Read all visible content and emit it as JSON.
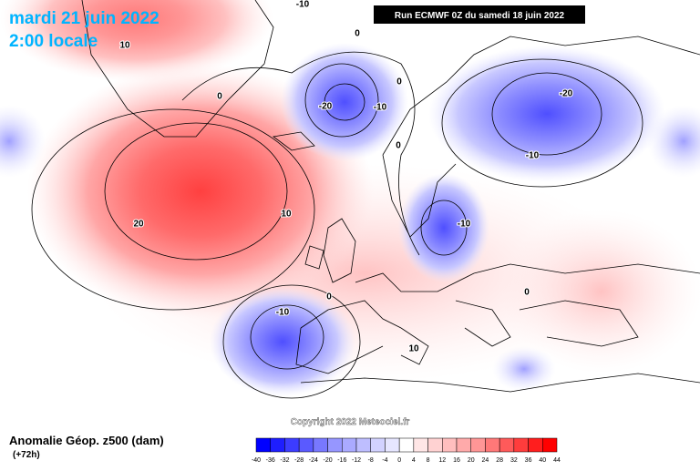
{
  "header": {
    "date": "mardi 21 juin 2022",
    "time": "2:00 locale",
    "run": "Run ECMWF 0Z du samedi 18 juin 2022"
  },
  "copyright": "Copyright 2022 Meteociel.fr",
  "legend": {
    "title": "Anomalie Géop. z500 (dam)",
    "subtitle": "(+72h)",
    "ticks": [
      -40,
      -36,
      -32,
      -28,
      -24,
      -20,
      -16,
      -12,
      -8,
      -4,
      0,
      4,
      8,
      12,
      16,
      20,
      24,
      28,
      32,
      36,
      40,
      44
    ],
    "colors": [
      "#0000ff",
      "#1e1eff",
      "#3c3cff",
      "#5a5aff",
      "#7878ff",
      "#9696ff",
      "#aaaaff",
      "#bebeff",
      "#d2d2ff",
      "#e6e6ff",
      "#ffffff",
      "#ffe6e6",
      "#ffd2d2",
      "#ffbebe",
      "#ffaaaa",
      "#ff9696",
      "#ff7878",
      "#ff5a5a",
      "#ff3c3c",
      "#ff1e1e",
      "#ff0000"
    ]
  },
  "contour_labels": [
    10,
    -10,
    0,
    0,
    -20,
    -10,
    0,
    0,
    -20,
    -10,
    20,
    10,
    -10,
    0,
    0,
    -10,
    10
  ]
}
